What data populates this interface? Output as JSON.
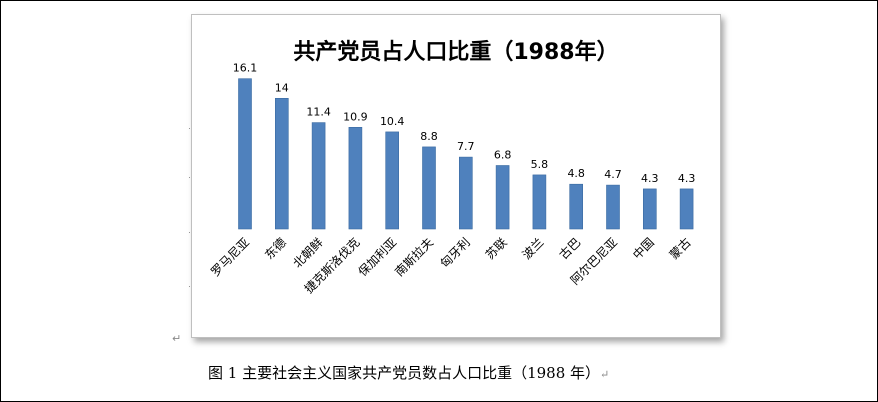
{
  "chart_data": {
    "type": "bar",
    "title": "共产党员占人口比重（1988年）",
    "categories": [
      "罗马尼亚",
      "东德",
      "北朝鲜",
      "捷克斯洛伐克",
      "保加利亚",
      "南斯拉夫",
      "匈牙利",
      "苏联",
      "波兰",
      "古巴",
      "阿尔巴尼亚",
      "中国",
      "蒙古"
    ],
    "values": [
      16.1,
      14,
      11.4,
      10.9,
      10.4,
      8.8,
      7.7,
      6.8,
      5.8,
      4.8,
      4.7,
      4.3,
      4.3
    ],
    "value_labels": [
      "16.1",
      "14",
      "11.4",
      "10.9",
      "10.4",
      "8.8",
      "7.7",
      "6.8",
      "5.8",
      "4.8",
      "4.7",
      "4.3",
      "4.3"
    ],
    "ylim": [
      0,
      18
    ],
    "xlabel": "",
    "ylabel": "",
    "grid": false,
    "bar_color": "#4f81bd",
    "bar_edge_color": "#3a6aa0"
  },
  "caption": {
    "text": "图 1  主要社会主义国家共产党员数占人口比重（1988 年）"
  }
}
